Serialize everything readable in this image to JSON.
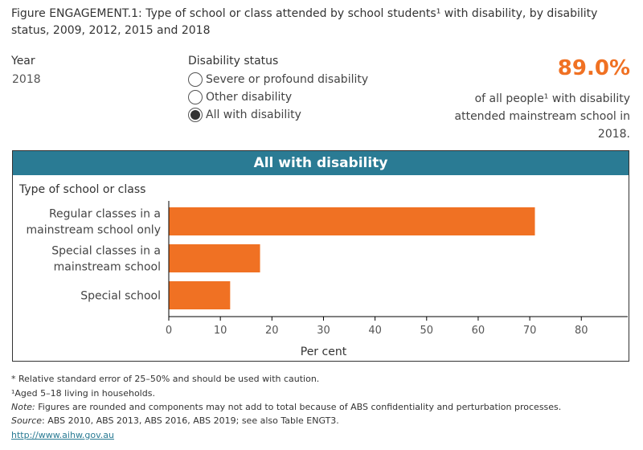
{
  "title": "Figure ENGAGEMENT.1: Type of school or class attended by school students¹ with disability, by disability status, 2009, 2012, 2015 and 2018",
  "year_filter": {
    "label": "Year",
    "value": "2018"
  },
  "disability_filter": {
    "label": "Disability status",
    "options": [
      {
        "label": "Severe or profound disability",
        "selected": false
      },
      {
        "label": "Other disability",
        "selected": false
      },
      {
        "label": "All with disability",
        "selected": true
      }
    ]
  },
  "callout": {
    "value": "89.0%",
    "text": "of all people¹ with disability attended mainstream school in 2018."
  },
  "colors": {
    "accent": "#f07123",
    "header": "#2a7b94"
  },
  "chart_data": {
    "type": "bar",
    "orientation": "horizontal",
    "title": "All with disability",
    "category_axis_label": "Type of school or class",
    "xlabel": "Per cent",
    "categories": [
      "Regular classes in a mainstream school only",
      "Special classes in a mainstream school",
      "Special school"
    ],
    "category_lines": [
      [
        "Regular classes in a",
        "mainstream school only"
      ],
      [
        "Special classes in a",
        "mainstream school"
      ],
      [
        "Special school"
      ]
    ],
    "values": [
      71.0,
      17.7,
      11.9
    ],
    "xlim": [
      0,
      89
    ],
    "ticks": [
      "0",
      "10",
      "20",
      "30",
      "40",
      "50",
      "60",
      "70",
      "80"
    ],
    "grid": false
  },
  "footnotes": {
    "rse": "* Relative standard error of 25–50% and should be used with caution.",
    "aged": "¹Aged 5–18 living in households.",
    "note_label": "Note:",
    "note": " Figures are rounded and components may not add to total because of ABS confidentiality and perturbation processes.",
    "source_label": "Source",
    "source": ": ABS 2010, ABS 2013, ABS 2016, ABS 2019; see also Table ENGT3.",
    "link": "http://www.aihw.gov.au"
  }
}
